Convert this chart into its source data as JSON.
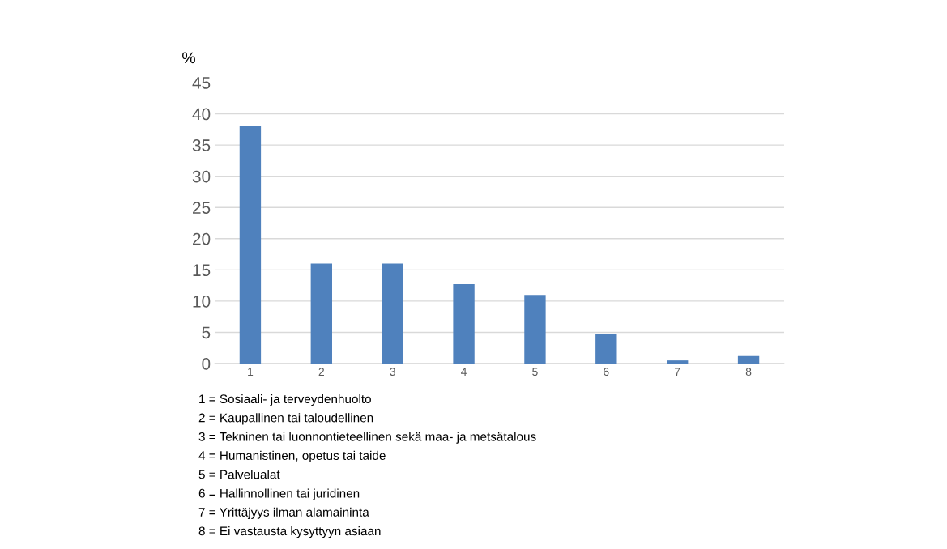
{
  "chart_data": {
    "type": "bar",
    "ylabel": "%",
    "categories": [
      "1",
      "2",
      "3",
      "4",
      "5",
      "6",
      "7",
      "8"
    ],
    "values": [
      38,
      16,
      16,
      12.7,
      11,
      4.7,
      0.5,
      1.2
    ],
    "color": "#4f81bd",
    "ylim": [
      0,
      45
    ],
    "yticks": [
      0,
      5,
      10,
      15,
      20,
      25,
      30,
      35,
      40,
      45
    ],
    "grid": "y",
    "annotations": [
      "1 = Sosiaali- ja terveydenhuolto",
      "2 = Kaupallinen tai taloudellinen",
      "3 = Tekninen tai luonnontieteellinen sekä maa- ja metsätalous",
      "4 = Humanistinen, opetus tai taide",
      "5 = Palvelualat",
      "6 = Hallinnollinen tai juridinen",
      "7 = Yrittäjyys ilman alamaininta",
      "8 = Ei vastausta kysyttyyn asiaan"
    ]
  }
}
